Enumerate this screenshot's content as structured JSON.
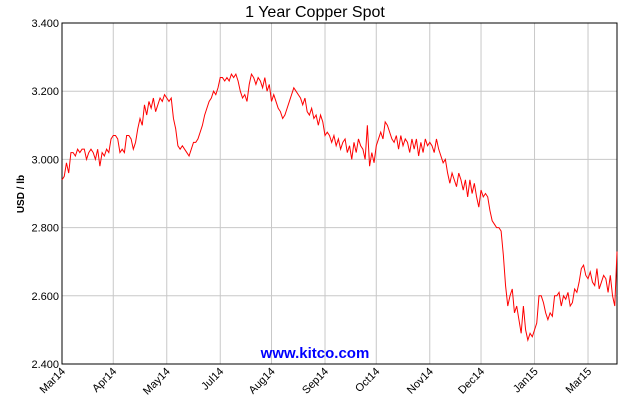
{
  "chart_data": {
    "type": "line",
    "title": "1 Year Copper Spot",
    "ylabel": "USD / lb",
    "annotation": "www.kitco.com",
    "ylim": [
      2.4,
      3.4
    ],
    "yticks": [
      {
        "value": 2.4,
        "label": "2.400"
      },
      {
        "value": 2.6,
        "label": "2.600"
      },
      {
        "value": 2.8,
        "label": "2.800"
      },
      {
        "value": 3.0,
        "label": "3.000"
      },
      {
        "value": 3.2,
        "label": "3.200"
      },
      {
        "value": 3.4,
        "label": "3.400"
      }
    ],
    "grid": true,
    "categories": [
      "Mar14",
      null,
      null,
      null,
      null,
      null,
      null,
      null,
      null,
      null,
      null,
      null,
      null,
      null,
      null,
      null,
      null,
      null,
      null,
      null,
      null,
      null,
      null,
      "Apr14",
      null,
      null,
      null,
      null,
      null,
      null,
      null,
      null,
      null,
      null,
      null,
      null,
      null,
      null,
      null,
      null,
      null,
      null,
      null,
      null,
      null,
      null,
      null,
      "May14",
      null,
      null,
      null,
      null,
      null,
      null,
      null,
      null,
      null,
      null,
      null,
      null,
      null,
      null,
      null,
      null,
      null,
      null,
      null,
      null,
      null,
      null,
      null,
      "Jul14",
      null,
      null,
      null,
      null,
      null,
      null,
      null,
      null,
      null,
      null,
      null,
      null,
      null,
      null,
      null,
      null,
      null,
      null,
      null,
      null,
      null,
      null,
      "Aug14",
      null,
      null,
      null,
      null,
      null,
      null,
      null,
      null,
      null,
      null,
      null,
      null,
      null,
      null,
      null,
      null,
      null,
      null,
      null,
      null,
      null,
      null,
      null,
      "Sep14",
      null,
      null,
      null,
      null,
      null,
      null,
      null,
      null,
      null,
      null,
      null,
      null,
      null,
      null,
      null,
      null,
      null,
      null,
      null,
      null,
      null,
      null,
      "Oct14",
      null,
      null,
      null,
      null,
      null,
      null,
      null,
      null,
      null,
      null,
      null,
      null,
      null,
      null,
      null,
      null,
      null,
      null,
      null,
      null,
      null,
      null,
      null,
      "Nov14",
      null,
      null,
      null,
      null,
      null,
      null,
      null,
      null,
      null,
      null,
      null,
      null,
      null,
      null,
      null,
      null,
      null,
      null,
      null,
      null,
      null,
      null,
      "Dec14",
      null,
      null,
      null,
      null,
      null,
      null,
      null,
      null,
      null,
      null,
      null,
      null,
      null,
      null,
      null,
      null,
      null,
      null,
      null,
      null,
      null,
      null,
      null,
      "Jan15",
      null,
      null,
      null,
      null,
      null,
      null,
      null,
      null,
      null,
      null,
      null,
      null,
      null,
      null,
      null,
      null,
      null,
      null,
      null,
      null,
      null,
      null,
      null,
      "Mar15",
      null,
      null,
      null,
      null,
      null,
      null,
      null,
      null,
      null,
      null,
      null,
      null,
      null
    ],
    "series": [
      {
        "name": "Copper",
        "color": "#ff0000",
        "values": [
          2.94,
          2.95,
          2.99,
          2.96,
          3.02,
          3.02,
          3.01,
          3.03,
          3.02,
          3.03,
          3.03,
          3.0,
          3.02,
          3.03,
          3.02,
          3.0,
          3.03,
          2.98,
          3.02,
          3.01,
          3.03,
          3.02,
          3.06,
          3.07,
          3.07,
          3.06,
          3.02,
          3.03,
          3.02,
          3.07,
          3.07,
          3.06,
          3.03,
          3.05,
          3.09,
          3.12,
          3.1,
          3.16,
          3.13,
          3.17,
          3.15,
          3.18,
          3.14,
          3.16,
          3.18,
          3.17,
          3.19,
          3.18,
          3.17,
          3.18,
          3.12,
          3.09,
          3.04,
          3.03,
          3.04,
          3.03,
          3.02,
          3.01,
          3.03,
          3.05,
          3.05,
          3.06,
          3.08,
          3.1,
          3.13,
          3.15,
          3.17,
          3.18,
          3.2,
          3.19,
          3.21,
          3.24,
          3.24,
          3.23,
          3.24,
          3.23,
          3.25,
          3.24,
          3.25,
          3.23,
          3.2,
          3.18,
          3.19,
          3.17,
          3.22,
          3.25,
          3.24,
          3.22,
          3.24,
          3.23,
          3.21,
          3.24,
          3.2,
          3.22,
          3.17,
          3.19,
          3.17,
          3.15,
          3.14,
          3.12,
          3.13,
          3.15,
          3.17,
          3.19,
          3.21,
          3.2,
          3.19,
          3.18,
          3.16,
          3.18,
          3.14,
          3.13,
          3.15,
          3.12,
          3.13,
          3.1,
          3.13,
          3.11,
          3.07,
          3.08,
          3.07,
          3.05,
          3.07,
          3.04,
          3.06,
          3.03,
          3.05,
          3.06,
          3.02,
          3.04,
          3.0,
          3.05,
          3.02,
          3.06,
          3.04,
          3.03,
          3.0,
          3.1,
          2.98,
          3.02,
          2.99,
          3.04,
          3.06,
          3.08,
          3.06,
          3.11,
          3.1,
          3.08,
          3.06,
          3.05,
          3.07,
          3.03,
          3.07,
          3.04,
          3.06,
          3.05,
          3.02,
          3.06,
          3.03,
          3.06,
          3.01,
          3.05,
          3.02,
          3.06,
          3.04,
          3.05,
          3.04,
          3.02,
          3.06,
          3.03,
          3.01,
          2.99,
          3.0,
          2.96,
          2.93,
          2.96,
          2.94,
          2.92,
          2.96,
          2.94,
          2.91,
          2.94,
          2.89,
          2.94,
          2.9,
          2.93,
          2.89,
          2.86,
          2.91,
          2.89,
          2.9,
          2.89,
          2.85,
          2.82,
          2.81,
          2.8,
          2.8,
          2.79,
          2.72,
          2.63,
          2.57,
          2.6,
          2.62,
          2.55,
          2.57,
          2.53,
          2.49,
          2.57,
          2.5,
          2.47,
          2.49,
          2.48,
          2.5,
          2.52,
          2.6,
          2.6,
          2.58,
          2.55,
          2.53,
          2.55,
          2.54,
          2.6,
          2.6,
          2.61,
          2.57,
          2.6,
          2.59,
          2.61,
          2.57,
          2.58,
          2.62,
          2.61,
          2.64,
          2.68,
          2.69,
          2.66,
          2.65,
          2.67,
          2.64,
          2.63,
          2.68,
          2.62,
          2.64,
          2.66,
          2.65,
          2.61,
          2.66,
          2.6,
          2.57,
          2.73
        ]
      }
    ]
  }
}
